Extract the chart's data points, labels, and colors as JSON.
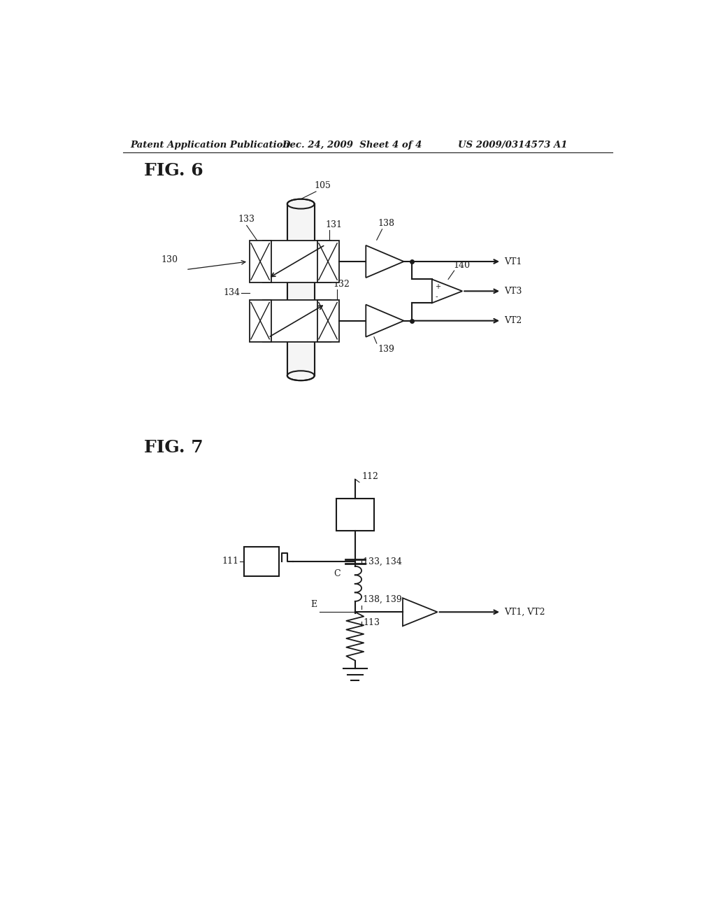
{
  "bg_color": "#ffffff",
  "line_color": "#1a1a1a",
  "header_text": "Patent Application Publication",
  "header_date": "Dec. 24, 2009  Sheet 4 of 4",
  "header_patent": "US 2009/0314573 A1",
  "fig6_label": "FIG. 6",
  "fig7_label": "FIG. 7"
}
